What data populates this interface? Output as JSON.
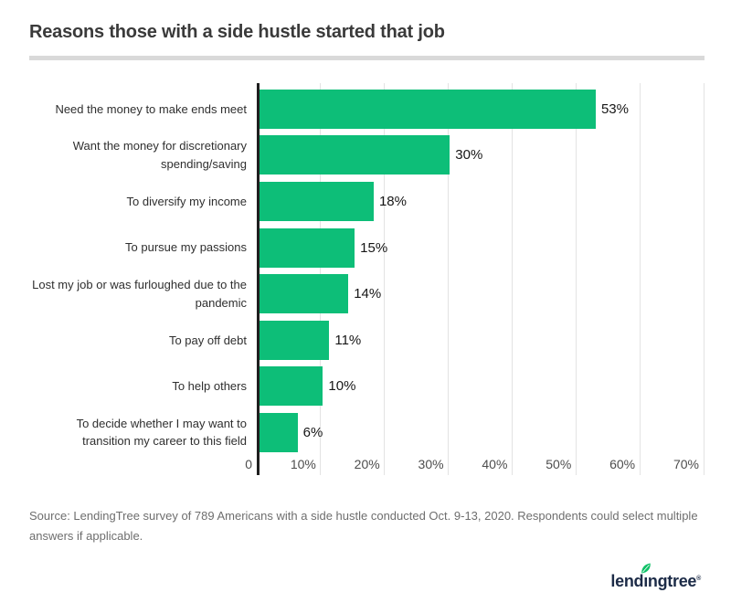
{
  "title": "Reasons those with a side hustle started that job",
  "source": "Source: LendingTree survey of 789 Americans with a side hustle conducted Oct. 9-13, 2020. Respondents could select multiple answers if applicable.",
  "logo": {
    "text": "lendingtree",
    "registered": "®"
  },
  "colors": {
    "bar": "#0dbe78",
    "axis": "#1f1f1f",
    "grid": "#e3e3e3",
    "title": "#3a3a3a",
    "category_label": "#2f2f2f",
    "value_label": "#161616",
    "tick_label": "#4d4d4d",
    "source": "#6e6e6e",
    "divider": "#d9d9d9",
    "logo_navy": "#1c2b47",
    "leaf_green": "#0fc167"
  },
  "chart_data": {
    "type": "bar",
    "orientation": "horizontal",
    "title": "Reasons those with a side hustle started that job",
    "categories": [
      "Need the money to make ends meet",
      "Want the money for discretionary spending/saving",
      "To diversify my income",
      "To pursue my passions",
      "Lost my job or was furloughed due to the pandemic",
      "To pay off debt",
      "To help others",
      "To decide whether I may want to transition my career to this field"
    ],
    "values": [
      53,
      30,
      18,
      15,
      14,
      11,
      10,
      6
    ],
    "value_labels": [
      "53%",
      "30%",
      "18%",
      "15%",
      "14%",
      "11%",
      "10%",
      "6%"
    ],
    "xlabel": "",
    "ylabel": "",
    "xlim": [
      0,
      70
    ],
    "x_ticks": [
      "0",
      "10%",
      "20%",
      "30%",
      "40%",
      "50%",
      "60%",
      "70%"
    ],
    "x_tick_values": [
      0,
      10,
      20,
      30,
      40,
      50,
      60,
      70
    ],
    "grid": "vertical",
    "legend": "none"
  }
}
